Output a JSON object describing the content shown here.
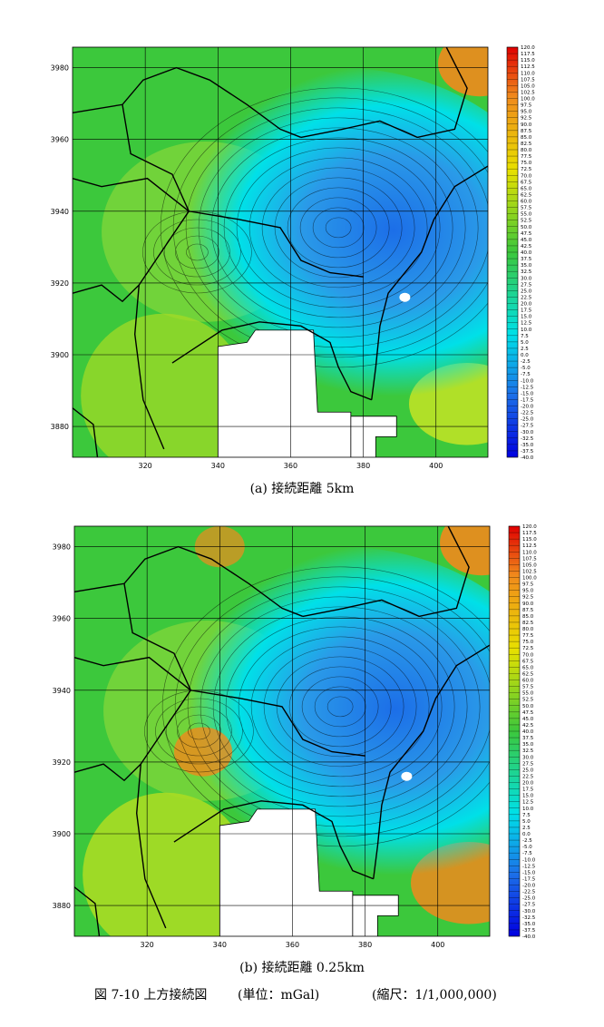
{
  "panels": [
    {
      "caption": "(a) 接続距離 5km",
      "x_ticks": [
        "320",
        "340",
        "360",
        "380",
        "400"
      ],
      "y_ticks": [
        "3980",
        "3960",
        "3940",
        "3920",
        "3900",
        "3880"
      ],
      "scale_labels": [
        "120.0",
        "117.5",
        "115.0",
        "112.5",
        "110.0",
        "107.5",
        "105.0",
        "102.5",
        "100.0",
        "97.5",
        "95.0",
        "92.5",
        "90.0",
        "87.5",
        "85.0",
        "82.5",
        "80.0",
        "77.5",
        "75.0",
        "72.5",
        "70.0",
        "67.5",
        "65.0",
        "62.5",
        "60.0",
        "57.5",
        "55.0",
        "52.5",
        "50.0",
        "47.5",
        "45.0",
        "42.5",
        "40.0",
        "37.5",
        "35.0",
        "32.5",
        "30.0",
        "27.5",
        "25.0",
        "22.5",
        "20.0",
        "17.5",
        "15.0",
        "12.5",
        "10.0",
        "7.5",
        "5.0",
        "2.5",
        "0.0",
        "-2.5",
        "-5.0",
        "-7.5",
        "-10.0",
        "-12.5",
        "-15.0",
        "-17.5",
        "-20.0",
        "-22.5",
        "-25.0",
        "-27.5",
        "-30.0",
        "-32.5",
        "-35.0",
        "-37.5",
        "-40.0"
      ]
    },
    {
      "caption": "(b) 接続距離 0.25km",
      "x_ticks": [
        "320",
        "340",
        "360",
        "380",
        "400"
      ],
      "y_ticks": [
        "3980",
        "3960",
        "3940",
        "3920",
        "3900",
        "3880"
      ],
      "scale_labels": [
        "120.0",
        "117.5",
        "115.0",
        "112.5",
        "110.0",
        "107.5",
        "105.0",
        "102.5",
        "100.0",
        "97.5",
        "95.0",
        "92.5",
        "90.0",
        "87.5",
        "85.0",
        "82.5",
        "80.0",
        "77.5",
        "75.0",
        "72.5",
        "70.0",
        "67.5",
        "65.0",
        "62.5",
        "60.0",
        "57.5",
        "55.0",
        "52.5",
        "50.0",
        "47.5",
        "45.0",
        "42.5",
        "40.0",
        "37.5",
        "35.0",
        "32.5",
        "30.0",
        "27.5",
        "25.0",
        "22.5",
        "20.0",
        "17.5",
        "15.0",
        "12.5",
        "10.0",
        "7.5",
        "5.0",
        "2.5",
        "0.0",
        "-2.5",
        "-5.0",
        "-7.5",
        "-10.0",
        "-12.5",
        "-15.0",
        "-17.5",
        "-20.0",
        "-22.5",
        "-25.0",
        "-27.5",
        "-30.0",
        "-32.5",
        "-35.0",
        "-37.5",
        "-40.0"
      ]
    }
  ],
  "figure_caption": {
    "title": "図 7-10 上方接続図",
    "unit": "(単位：mGal)",
    "scale": "(縮尺：1/1,000,000)"
  },
  "colors": {
    "scale_top": "#e00000",
    "scale_orange": "#f08a1c",
    "scale_yellow": "#e8e000",
    "scale_green": "#3cc83c",
    "scale_cyan": "#00e0e8",
    "scale_blue": "#1c6ee8",
    "scale_bottom": "#0000e0",
    "grid": "#000000",
    "coast": "#000000",
    "masked": "#ffffff"
  }
}
